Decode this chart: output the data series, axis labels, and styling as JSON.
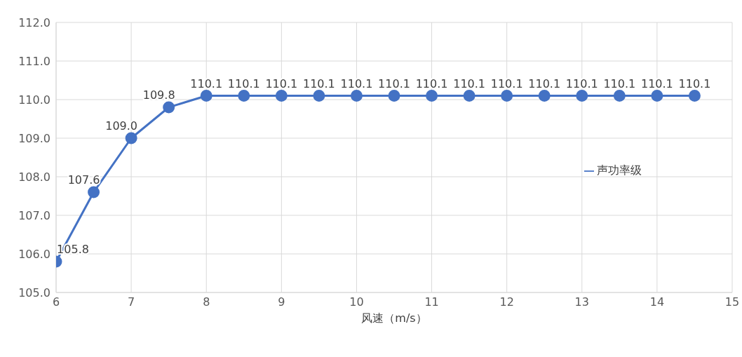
{
  "chart_data": {
    "type": "line",
    "xlabel": "风速（m/s）",
    "x": [
      6,
      6.5,
      7,
      7.5,
      8,
      8.5,
      9,
      9.5,
      10,
      10.5,
      11,
      11.5,
      12,
      12.5,
      13,
      13.5,
      14,
      14.5
    ],
    "series": [
      {
        "name": "声功率级",
        "color": "#4472c4",
        "values": [
          105.8,
          107.6,
          109.0,
          109.8,
          110.1,
          110.1,
          110.1,
          110.1,
          110.1,
          110.1,
          110.1,
          110.1,
          110.1,
          110.1,
          110.1,
          110.1,
          110.1,
          110.1
        ],
        "value_labels": [
          "105.8",
          "107.6",
          "109.0",
          "109.8",
          "110.1",
          "110.1",
          "110.1",
          "110.1",
          "110.1",
          "110.1",
          "110.1",
          "110.1",
          "110.1",
          "110.1",
          "110.1",
          "110.1",
          "110.1",
          "110.1"
        ]
      }
    ],
    "xlim": [
      6,
      15
    ],
    "xticks": [
      6,
      7,
      8,
      9,
      10,
      11,
      12,
      13,
      14,
      15
    ],
    "ylim": [
      105,
      112
    ],
    "yticks": [
      {
        "value": 105,
        "label": "105.0"
      },
      {
        "value": 106,
        "label": "106.0"
      },
      {
        "value": 107,
        "label": "107.0"
      },
      {
        "value": 108,
        "label": "108.0"
      },
      {
        "value": 109,
        "label": "109.0"
      },
      {
        "value": 110,
        "label": "110.0"
      },
      {
        "value": 111,
        "label": "111.0"
      },
      {
        "value": 112,
        "label": "112.0"
      }
    ],
    "grid": true,
    "legend": "right",
    "marker": "circle",
    "line_style": "solid"
  }
}
